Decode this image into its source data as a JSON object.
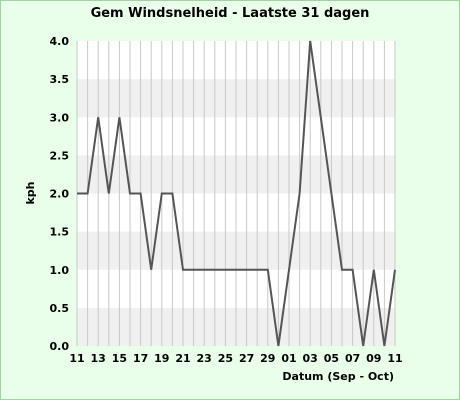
{
  "chart_data": {
    "type": "line",
    "title": "Gem Windsnelheid - Laatste 31 dagen",
    "xlabel": "Datum (Sep - Oct)",
    "ylabel": "kph",
    "ylim": [
      0,
      4
    ],
    "yticks": [
      "0.0",
      "0.5",
      "1.0",
      "1.5",
      "2.0",
      "2.5",
      "3.0",
      "3.5",
      "4.0"
    ],
    "xticks": [
      "11",
      "13",
      "15",
      "17",
      "19",
      "21",
      "23",
      "25",
      "27",
      "29",
      "01",
      "03",
      "05",
      "07",
      "09",
      "11"
    ],
    "grid": true,
    "colors": {
      "line": "#555555",
      "band": "#f0f0f0",
      "plot_bg": "#ffffff",
      "grid": "#c8c8c8",
      "frame_bg": "#eaffea"
    },
    "categories": [
      "11",
      "12",
      "13",
      "14",
      "15",
      "16",
      "17",
      "18",
      "19",
      "20",
      "21",
      "22",
      "23",
      "24",
      "25",
      "26",
      "27",
      "28",
      "29",
      "30",
      "01",
      "02",
      "03",
      "04",
      "05",
      "06",
      "07",
      "08",
      "09",
      "10",
      "11"
    ],
    "series": [
      {
        "values": [
          2.0,
          2.0,
          3.0,
          2.0,
          3.0,
          2.0,
          2.0,
          1.0,
          2.0,
          2.0,
          1.0,
          1.0,
          1.0,
          1.0,
          1.0,
          1.0,
          1.0,
          1.0,
          1.0,
          0.0,
          1.0,
          2.0,
          4.0,
          3.0,
          2.0,
          1.0,
          1.0,
          0.0,
          1.0,
          0.0,
          1.0
        ]
      }
    ]
  }
}
